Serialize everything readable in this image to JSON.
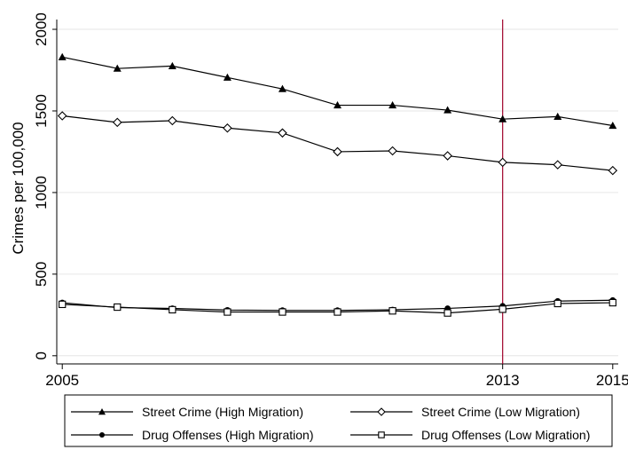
{
  "chart_data": {
    "type": "line",
    "ylabel": "Crimes per 100,000",
    "x": [
      2005,
      2006,
      2007,
      2008,
      2009,
      2010,
      2011,
      2012,
      2013,
      2014,
      2015
    ],
    "x_ticks": [
      "2005",
      "2013",
      "2015"
    ],
    "y_ticks": [
      "0",
      "500",
      "1000",
      "1500",
      "2000"
    ],
    "ylim": [
      -50,
      2060
    ],
    "xlim": [
      2004.9,
      2015.1
    ],
    "grid": true,
    "reference_line": {
      "x": 2013,
      "color": "#a0002a"
    },
    "legend_position": "bottom",
    "series": [
      {
        "name": "Street Crime (High Migration)",
        "marker": "triangle",
        "values": [
          1830,
          1760,
          1775,
          1705,
          1635,
          1535,
          1535,
          1505,
          1450,
          1465,
          1410
        ]
      },
      {
        "name": "Street Crime (Low Migration)",
        "marker": "diamond",
        "values": [
          1470,
          1430,
          1440,
          1395,
          1365,
          1250,
          1255,
          1225,
          1185,
          1170,
          1135
        ]
      },
      {
        "name": "Drug Offenses (High Migration)",
        "marker": "circle",
        "values": [
          325,
          295,
          290,
          280,
          278,
          278,
          282,
          290,
          305,
          335,
          340
        ]
      },
      {
        "name": "Drug Offenses (Low Migration)",
        "marker": "square",
        "values": [
          315,
          298,
          282,
          268,
          268,
          268,
          275,
          262,
          285,
          320,
          325
        ]
      }
    ]
  }
}
